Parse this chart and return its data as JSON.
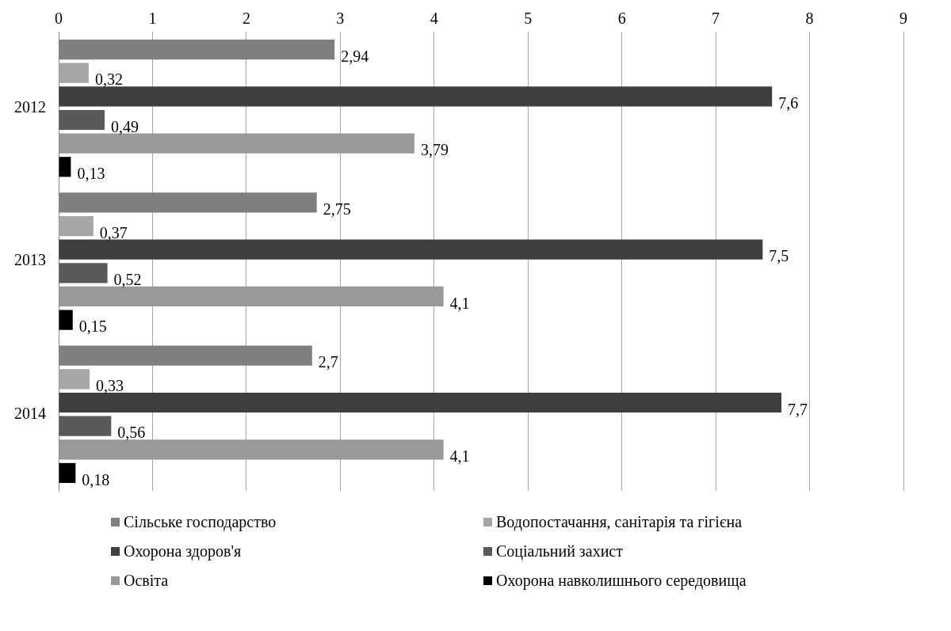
{
  "chart_data": {
    "type": "bar",
    "orientation": "horizontal",
    "categories": [
      "2012",
      "2013",
      "2014"
    ],
    "series": [
      {
        "name": "Сільське господарство",
        "color": "#7f7f7f",
        "values": [
          2.94,
          2.75,
          2.7
        ],
        "value_labels": [
          "2,94",
          "2,75",
          "2,7"
        ]
      },
      {
        "name": "Водопостачання, санітарія та гігієна",
        "color": "#a6a6a6",
        "values": [
          0.32,
          0.37,
          0.33
        ],
        "value_labels": [
          "0,32",
          "0,37",
          "0,33"
        ]
      },
      {
        "name": "Охорона здоров'я",
        "color": "#3f3f3f",
        "values": [
          7.6,
          7.5,
          7.7
        ],
        "value_labels": [
          "7,6",
          "7,5",
          "7,7"
        ]
      },
      {
        "name": "Соціальний захист",
        "color": "#595959",
        "values": [
          0.49,
          0.52,
          0.56
        ],
        "value_labels": [
          "0,49",
          "0,52",
          "0,56"
        ]
      },
      {
        "name": "Освіта",
        "color": "#999999",
        "values": [
          3.79,
          4.1,
          4.1
        ],
        "value_labels": [
          "3,79",
          "4,1",
          "4,1"
        ]
      },
      {
        "name": "Охорона навколишнього середовища",
        "color": "#000000",
        "values": [
          0.13,
          0.15,
          0.18
        ],
        "value_labels": [
          "0,13",
          "0,15",
          "0,18"
        ]
      }
    ],
    "xlim": [
      0,
      9
    ],
    "xticks": [
      0,
      1,
      2,
      3,
      4,
      5,
      6,
      7,
      8,
      9
    ],
    "grid": "x",
    "legend": "bottom"
  }
}
